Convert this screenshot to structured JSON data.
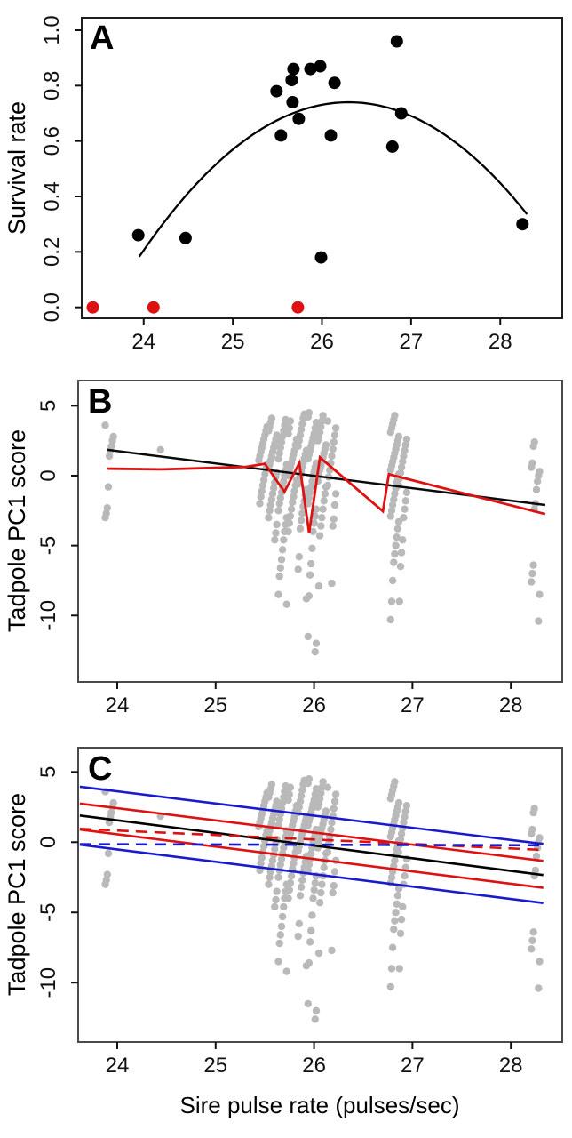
{
  "figure": {
    "xlabel": "Sire pulse rate (pulses/sec)"
  },
  "colors": {
    "black": "#000000",
    "red": "#dd1111",
    "blue": "#1a1acd",
    "gray": "#b9b9b9",
    "box_a": "#1e1e1e",
    "box_bc": "#4a4a4a"
  },
  "chart_data": [
    {
      "panel_label": "A",
      "type": "scatter",
      "title": "",
      "xlabel": "Sire pulse rate (pulses/sec)",
      "ylabel": "Survival rate",
      "xlim": [
        23.305,
        28.695
      ],
      "ylim": [
        -0.0395,
        1.0449
      ],
      "xticks": {
        "values": [
          24,
          25,
          26,
          27,
          28
        ],
        "labels": [
          "24",
          "25",
          "26",
          "27",
          "28"
        ]
      },
      "yticks": {
        "values": [
          0.0,
          0.2,
          0.4,
          0.6,
          0.8,
          1.0
        ],
        "labels": [
          "0.0",
          "0.2",
          "0.4",
          "0.6",
          "0.8",
          "1.0"
        ]
      },
      "points_black": [
        [
          23.94,
          0.26
        ],
        [
          24.47,
          0.25
        ],
        [
          25.49,
          0.78
        ],
        [
          25.54,
          0.62
        ],
        [
          25.66,
          0.82
        ],
        [
          25.67,
          0.74
        ],
        [
          25.68,
          0.86
        ],
        [
          25.74,
          0.68
        ],
        [
          25.87,
          0.86
        ],
        [
          25.98,
          0.87
        ],
        [
          25.99,
          0.18
        ],
        [
          26.1,
          0.62
        ],
        [
          26.14,
          0.81
        ],
        [
          26.79,
          0.58
        ],
        [
          26.84,
          0.96
        ],
        [
          26.89,
          0.7
        ],
        [
          28.25,
          0.3
        ]
      ],
      "points_red_zero": [
        [
          23.43,
          0.0
        ],
        [
          24.11,
          0.0
        ],
        [
          25.73,
          0.0
        ]
      ],
      "fit_curve": {
        "type": "quadratic",
        "peak_x": 26.3,
        "peak_y": 0.74,
        "a": -0.101,
        "x_range": [
          23.95,
          28.3
        ]
      }
    },
    {
      "panel_label": "B",
      "type": "scatter",
      "title": "",
      "xlabel": "Sire pulse rate (pulses/sec)",
      "ylabel": "Tadpole PC1 score",
      "xlim": [
        23.603,
        28.522
      ],
      "ylim": [
        -14.75,
        6.8
      ],
      "xticks": {
        "values": [
          24,
          25,
          26,
          27,
          28
        ],
        "labels": [
          "24",
          "25",
          "26",
          "27",
          "28"
        ]
      },
      "yticks": {
        "values": [
          5,
          0,
          -5,
          -10
        ],
        "labels": [
          "5",
          "0",
          "-5",
          "-10"
        ]
      },
      "scatter_columns": [
        {
          "x": 23.92,
          "ys": [
            3.6,
            2.8,
            2.5,
            2.1,
            1.8,
            1.4,
            -0.8,
            -2.3,
            -2.7,
            -3.0
          ]
        },
        {
          "x": 24.44,
          "ys": [
            1.85
          ]
        },
        {
          "x": 25.48,
          "ys": [
            3.5,
            3.2,
            2.9,
            2.6,
            2.3,
            2.0,
            1.7,
            1.4,
            1.1,
            0.8,
            0.5,
            0.1,
            -0.3,
            -0.7,
            -1.1,
            -1.5,
            -2.0
          ]
        },
        {
          "x": 25.58,
          "ys": [
            4.1,
            3.8,
            3.5,
            3.2,
            2.9,
            2.6,
            2.3,
            2.0,
            1.7,
            1.4,
            1.1,
            0.8,
            0.5,
            0.2,
            -0.1,
            -0.5,
            -0.9,
            -1.3,
            -1.7,
            -2.1,
            -2.5,
            -3.0,
            -3.5,
            -4.1,
            -4.6
          ]
        },
        {
          "x": 25.68,
          "ys": [
            4.0,
            3.6,
            3.2,
            2.8,
            2.4,
            2.0,
            1.6,
            1.2,
            0.8,
            0.4,
            0.0,
            -0.4,
            -0.8,
            -1.2,
            -1.6,
            -2.0,
            -2.5,
            -3.0,
            -3.5,
            -4.0,
            -4.6,
            -5.3,
            -6.0,
            -6.6,
            -7.2,
            -8.5,
            -9.2
          ]
        },
        {
          "x": 25.78,
          "ys": [
            3.9,
            3.4,
            3.0,
            2.6,
            2.2,
            1.8,
            1.5,
            1.2,
            0.9,
            0.6,
            0.3,
            0.0,
            -0.3,
            -0.7,
            -1.1,
            -1.5,
            -1.9,
            -2.4,
            -2.9,
            -3.4,
            -4.0
          ]
        },
        {
          "x": 25.88,
          "ys": [
            4.4,
            4.1,
            3.7,
            3.3,
            2.9,
            2.5,
            2.1,
            1.8,
            1.5,
            1.2,
            0.9,
            0.6,
            0.3,
            0.0,
            -0.3,
            -0.6,
            -1.0,
            -1.4,
            -1.8,
            -2.2,
            -2.7,
            -3.2,
            -3.8,
            -5.8,
            -6.7,
            -8.8
          ]
        },
        {
          "x": 25.98,
          "ys": [
            4.5,
            4.2,
            3.8,
            3.4,
            3.0,
            2.7,
            2.4,
            2.1,
            1.8,
            1.5,
            1.2,
            0.9,
            0.6,
            0.3,
            0.0,
            -0.4,
            -0.8,
            -1.2,
            -1.6,
            -2.0,
            -2.4,
            -2.9,
            -3.4,
            -4.0,
            -5.2,
            -6.3,
            -7.1,
            -8.6,
            -11.5,
            -12.0,
            -12.6
          ]
        },
        {
          "x": 26.08,
          "ys": [
            4.3,
            3.9,
            3.5,
            3.1,
            2.8,
            2.5,
            2.2,
            1.9,
            1.6,
            1.3,
            1.0,
            0.7,
            0.4,
            0.0,
            -0.4,
            -0.8,
            -1.3,
            -1.8,
            -2.4,
            -3.0,
            -3.6,
            -4.3,
            -7.9
          ]
        },
        {
          "x": 26.18,
          "ys": [
            3.9,
            3.4,
            2.9,
            2.4,
            1.9,
            1.4,
            0.9,
            0.4,
            -0.1,
            -0.7,
            -1.3,
            -2.1,
            -3.1,
            -3.6,
            -7.7
          ]
        },
        {
          "x": 26.82,
          "ys": [
            4.3,
            4.0,
            3.7,
            3.4,
            3.1,
            2.8,
            2.5,
            2.2,
            1.9,
            1.6,
            1.3,
            1.0,
            0.7,
            0.4,
            0.1,
            -0.2,
            -0.5,
            -0.9,
            -1.3,
            -1.7,
            -2.1,
            -2.5,
            -2.9,
            -3.3,
            -3.8,
            -4.4,
            -5.0,
            -5.6,
            -6.2,
            -7.5,
            -9.0,
            -10.3
          ]
        },
        {
          "x": 26.9,
          "ys": [
            2.6,
            2.2,
            1.8,
            1.4,
            1.0,
            0.6,
            0.2,
            -0.2,
            -0.7,
            -1.2,
            -1.8,
            -2.4,
            -3.0,
            -4.6,
            -5.5,
            -6.5,
            -9.0
          ]
        },
        {
          "x": 28.25,
          "ys": [
            2.4,
            2.1,
            0.9,
            0.6,
            0.3,
            0.0,
            -0.4,
            -1.0,
            -2.0,
            -2.4,
            -6.4,
            -7.0,
            -7.6,
            -8.5,
            -10.4
          ]
        }
      ],
      "black_line": [
        [
          23.9,
          1.85
        ],
        [
          28.35,
          -2.1
        ]
      ],
      "red_line": [
        [
          23.9,
          0.5
        ],
        [
          24.45,
          0.45
        ],
        [
          25.3,
          0.62
        ],
        [
          25.5,
          0.85
        ],
        [
          25.7,
          -1.15
        ],
        [
          25.85,
          0.9
        ],
        [
          25.95,
          -4.1
        ],
        [
          26.06,
          1.3
        ],
        [
          26.7,
          -2.55
        ],
        [
          26.76,
          0.1
        ],
        [
          28.35,
          -2.75
        ]
      ]
    },
    {
      "panel_label": "C",
      "type": "scatter",
      "title": "",
      "xlabel": "Sire pulse rate (pulses/sec)",
      "ylabel": "Tadpole PC1 score",
      "xlim": [
        23.603,
        28.522
      ],
      "ylim": [
        -14.23,
        6.73
      ],
      "xticks": {
        "values": [
          24,
          25,
          26,
          27,
          28
        ],
        "labels": [
          "24",
          "25",
          "26",
          "27",
          "28"
        ]
      },
      "yticks": {
        "values": [
          5,
          0,
          -5,
          -10
        ],
        "labels": [
          "5",
          "0",
          "-5",
          "-10"
        ]
      },
      "scatter_columns": [
        {
          "x": 23.92,
          "ys": [
            3.6,
            2.8,
            2.5,
            2.1,
            1.8,
            1.4,
            -0.8,
            -2.3,
            -2.7,
            -3.0
          ]
        },
        {
          "x": 24.44,
          "ys": [
            1.85
          ]
        },
        {
          "x": 25.48,
          "ys": [
            3.5,
            3.2,
            2.9,
            2.6,
            2.3,
            2.0,
            1.7,
            1.4,
            1.1,
            0.8,
            0.5,
            0.1,
            -0.3,
            -0.7,
            -1.1,
            -1.5,
            -2.0
          ]
        },
        {
          "x": 25.58,
          "ys": [
            4.1,
            3.8,
            3.5,
            3.2,
            2.9,
            2.6,
            2.3,
            2.0,
            1.7,
            1.4,
            1.1,
            0.8,
            0.5,
            0.2,
            -0.1,
            -0.5,
            -0.9,
            -1.3,
            -1.7,
            -2.1,
            -2.5,
            -3.0,
            -3.5,
            -4.1,
            -4.6
          ]
        },
        {
          "x": 25.68,
          "ys": [
            4.0,
            3.6,
            3.2,
            2.8,
            2.4,
            2.0,
            1.6,
            1.2,
            0.8,
            0.4,
            0.0,
            -0.4,
            -0.8,
            -1.2,
            -1.6,
            -2.0,
            -2.5,
            -3.0,
            -3.5,
            -4.0,
            -4.6,
            -5.3,
            -6.0,
            -6.6,
            -7.2,
            -8.5,
            -9.2
          ]
        },
        {
          "x": 25.78,
          "ys": [
            3.9,
            3.4,
            3.0,
            2.6,
            2.2,
            1.8,
            1.5,
            1.2,
            0.9,
            0.6,
            0.3,
            0.0,
            -0.3,
            -0.7,
            -1.1,
            -1.5,
            -1.9,
            -2.4,
            -2.9,
            -3.4,
            -4.0
          ]
        },
        {
          "x": 25.88,
          "ys": [
            4.4,
            4.1,
            3.7,
            3.3,
            2.9,
            2.5,
            2.1,
            1.8,
            1.5,
            1.2,
            0.9,
            0.6,
            0.3,
            0.0,
            -0.3,
            -0.6,
            -1.0,
            -1.4,
            -1.8,
            -2.2,
            -2.7,
            -3.2,
            -3.8,
            -5.8,
            -6.7,
            -8.8
          ]
        },
        {
          "x": 25.98,
          "ys": [
            4.5,
            4.2,
            3.8,
            3.4,
            3.0,
            2.7,
            2.4,
            2.1,
            1.8,
            1.5,
            1.2,
            0.9,
            0.6,
            0.3,
            0.0,
            -0.4,
            -0.8,
            -1.2,
            -1.6,
            -2.0,
            -2.4,
            -2.9,
            -3.4,
            -4.0,
            -5.2,
            -6.3,
            -7.1,
            -8.6,
            -11.5,
            -12.0,
            -12.6
          ]
        },
        {
          "x": 26.08,
          "ys": [
            4.3,
            3.9,
            3.5,
            3.1,
            2.8,
            2.5,
            2.2,
            1.9,
            1.6,
            1.3,
            1.0,
            0.7,
            0.4,
            0.0,
            -0.4,
            -0.8,
            -1.3,
            -1.8,
            -2.4,
            -3.0,
            -3.6,
            -4.3,
            -7.9
          ]
        },
        {
          "x": 26.18,
          "ys": [
            3.9,
            3.4,
            2.9,
            2.4,
            1.9,
            1.4,
            0.9,
            0.4,
            -0.1,
            -0.7,
            -1.3,
            -2.1,
            -3.1,
            -3.6,
            -7.7
          ]
        },
        {
          "x": 26.82,
          "ys": [
            4.3,
            4.0,
            3.7,
            3.4,
            3.1,
            2.8,
            2.5,
            2.2,
            1.9,
            1.6,
            1.3,
            1.0,
            0.7,
            0.4,
            0.1,
            -0.2,
            -0.5,
            -0.9,
            -1.3,
            -1.7,
            -2.1,
            -2.5,
            -2.9,
            -3.3,
            -3.8,
            -4.4,
            -5.0,
            -5.6,
            -6.2,
            -7.5,
            -9.0,
            -10.3
          ]
        },
        {
          "x": 26.9,
          "ys": [
            2.6,
            2.2,
            1.8,
            1.4,
            1.0,
            0.6,
            0.2,
            -0.2,
            -0.7,
            -1.2,
            -1.8,
            -2.4,
            -3.0,
            -4.6,
            -5.5,
            -6.5,
            -9.0
          ]
        },
        {
          "x": 28.25,
          "ys": [
            2.4,
            2.1,
            0.9,
            0.6,
            0.3,
            0.0,
            -0.4,
            -1.0,
            -2.0,
            -2.4,
            -6.4,
            -7.0,
            -7.6,
            -8.5,
            -10.4
          ]
        }
      ],
      "lines": [
        {
          "name": "blue-upper",
          "color": "#1a1acd",
          "style": "solid",
          "from": [
            23.62,
            3.95
          ],
          "to": [
            28.33,
            -0.13
          ]
        },
        {
          "name": "red-upper",
          "color": "#dd1111",
          "style": "solid",
          "from": [
            23.62,
            2.75
          ],
          "to": [
            28.33,
            -1.33
          ]
        },
        {
          "name": "black-mean",
          "color": "#000000",
          "style": "solid",
          "from": [
            23.62,
            1.9
          ],
          "to": [
            28.33,
            -2.34
          ]
        },
        {
          "name": "red-dashed",
          "color": "#dd1111",
          "style": "dashed",
          "from": [
            23.62,
            0.95
          ],
          "to": [
            28.33,
            -0.55
          ]
        },
        {
          "name": "red-lower",
          "color": "#dd1111",
          "style": "solid",
          "from": [
            23.62,
            0.9
          ],
          "to": [
            28.33,
            -3.25
          ]
        },
        {
          "name": "blue-dashed",
          "color": "#1a1acd",
          "style": "dashed",
          "from": [
            23.62,
            -0.15
          ],
          "to": [
            28.33,
            -0.22
          ]
        },
        {
          "name": "blue-lower",
          "color": "#1a1acd",
          "style": "solid",
          "from": [
            23.62,
            -0.18
          ],
          "to": [
            28.33,
            -4.33
          ]
        }
      ]
    }
  ]
}
